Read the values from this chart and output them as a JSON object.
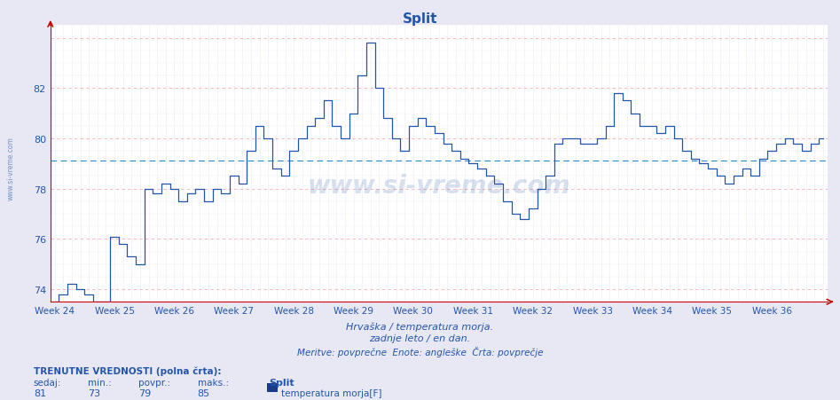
{
  "title": "Split",
  "xlabel_line1": "Hrvaška / temperatura morja.",
  "xlabel_line2": "zadnje leto / en dan.",
  "xlabel_line3": "Meritve: povprečne  Enote: angleške  Črta: povprečje",
  "background_color": "#e8e8f4",
  "plot_bg_color": "#ffffff",
  "line_color": "#2255aa",
  "avg_line_color": "#2288cc",
  "title_color": "#2255aa",
  "axis_color": "#cc0000",
  "ylim_min": 73.5,
  "ylim_max": 84.5,
  "avg_value": 79.1,
  "yticks": [
    74,
    76,
    78,
    80,
    82
  ],
  "weeks": [
    "Week 24",
    "Week 25",
    "Week 26",
    "Week 27",
    "Week 28",
    "Week 29",
    "Week 30",
    "Week 31",
    "Week 32",
    "Week 33",
    "Week 34",
    "Week 35",
    "Week 36"
  ],
  "values": [
    73.5,
    73.8,
    74.2,
    74.5,
    74.3,
    74.0,
    73.8,
    76.1,
    76.0,
    75.8,
    75.5,
    75.3,
    75.0,
    74.8,
    77.8,
    77.5,
    78.0,
    77.8,
    77.5,
    77.8,
    78.0,
    78.2,
    78.0,
    77.8,
    78.5,
    78.5,
    79.5,
    79.3,
    80.5,
    80.5,
    80.0,
    79.5,
    79.8,
    80.2,
    80.0,
    80.8,
    81.5,
    82.5,
    83.8,
    82.8,
    81.5,
    80.0,
    79.5,
    80.8,
    80.5,
    79.5,
    79.5,
    79.5,
    79.0,
    79.2,
    79.0,
    78.8,
    78.5,
    78.2,
    77.5,
    77.2,
    77.0,
    77.5,
    78.0,
    80.0,
    80.0,
    79.5,
    79.5,
    79.8,
    80.0,
    80.0,
    81.8,
    81.5,
    81.0,
    80.8,
    80.0,
    80.5,
    80.5,
    80.0,
    79.5,
    79.0,
    78.8,
    78.5,
    78.2,
    79.0,
    78.8,
    78.5,
    78.2,
    79.2,
    79.5,
    79.8,
    80.0,
    79.8,
    79.5,
    79.2
  ],
  "bottom_text1": "TRENUTNE VREDNOSTI (polna črta):",
  "bottom_labels": [
    "sedaj:",
    "min.:",
    "povpr.:",
    "maks.:"
  ],
  "bottom_values": [
    "81",
    "73",
    "79",
    "85"
  ],
  "legend_label": "Split",
  "legend_sublabel": "temperatura morja[F]",
  "legend_color": "#1a3a8a",
  "watermark": "www.si-vreme.com"
}
